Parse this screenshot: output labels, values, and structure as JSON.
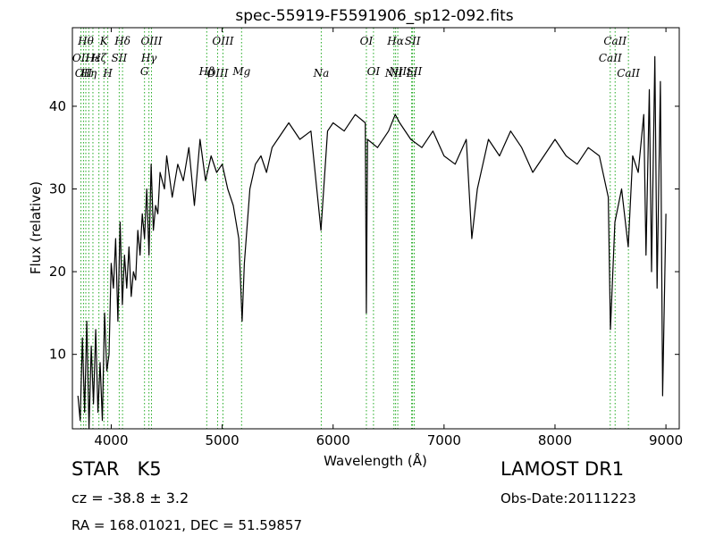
{
  "chart_data": {
    "type": "line",
    "title": "spec-55919-F5591906_sp12-092.fits",
    "xlabel": "Wavelength (Å)",
    "ylabel": "Flux (relative)",
    "xlim": [
      3650,
      9120
    ],
    "ylim": [
      1,
      49.5
    ],
    "xticks": [
      4000,
      5000,
      6000,
      7000,
      8000,
      9000
    ],
    "yticks": [
      10,
      20,
      30,
      40
    ],
    "grid": false,
    "line_color": "#000000",
    "marker_line_color": "#22aa22",
    "series": [
      {
        "x": [
          3700,
          3720,
          3740,
          3760,
          3780,
          3800,
          3820,
          3840,
          3860,
          3880,
          3900,
          3920,
          3940,
          3960,
          3980,
          4000,
          4020,
          4040,
          4060,
          4080,
          4100,
          4120,
          4140,
          4160,
          4180,
          4200,
          4220,
          4240,
          4260,
          4280,
          4300,
          4320,
          4340,
          4360,
          4380,
          4400,
          4420,
          4440,
          4460,
          4480,
          4500,
          4550,
          4600,
          4650,
          4700,
          4750,
          4800,
          4850,
          4900,
          4950,
          5000,
          5050,
          5100,
          5150,
          5180,
          5200,
          5250,
          5300,
          5350,
          5400,
          5450,
          5500,
          5600,
          5700,
          5800,
          5890,
          5950,
          6000,
          6100,
          6200,
          6290,
          6300,
          6310,
          6400,
          6500,
          6560,
          6600,
          6700,
          6800,
          6900,
          7000,
          7100,
          7200,
          7250,
          7300,
          7400,
          7500,
          7600,
          7700,
          7800,
          7900,
          8000,
          8100,
          8200,
          8300,
          8400,
          8480,
          8500,
          8540,
          8600,
          8660,
          8700,
          8750,
          8800,
          8820,
          8850,
          8870,
          8900,
          8920,
          8950,
          8970,
          9000
        ],
        "y": [
          5,
          2,
          12,
          3,
          14,
          1,
          11,
          4,
          13,
          3,
          9,
          2,
          15,
          8,
          10,
          21,
          18,
          24,
          14,
          26,
          16,
          22,
          18,
          23,
          17,
          20,
          19,
          25,
          22,
          27,
          24,
          30,
          22,
          33,
          25,
          28,
          27,
          32,
          31,
          30,
          34,
          29,
          33,
          31,
          35,
          28,
          36,
          31,
          34,
          32,
          33,
          30,
          28,
          24,
          14,
          21,
          30,
          33,
          34,
          32,
          35,
          36,
          38,
          36,
          37,
          25,
          37,
          38,
          37,
          39,
          38,
          15,
          36,
          35,
          37,
          39,
          38,
          36,
          35,
          37,
          34,
          33,
          36,
          24,
          30,
          36,
          34,
          37,
          35,
          32,
          34,
          36,
          34,
          33,
          35,
          34,
          29,
          13,
          26,
          30,
          23,
          34,
          32,
          39,
          22,
          42,
          20,
          46,
          18,
          43,
          5,
          27
        ]
      }
    ],
    "markers": [
      {
        "wl": 3727,
        "label": "OII",
        "row": 2
      },
      {
        "wl": 3750,
        "label": "OII",
        "row": 3
      },
      {
        "wl": 3771,
        "label": "Hθ",
        "row": 1
      },
      {
        "wl": 3798,
        "label": "Hη",
        "row": 3
      },
      {
        "wl": 3835,
        "label": "Hε",
        "row": 2
      },
      {
        "wl": 3889,
        "label": "Hζ",
        "row": 2
      },
      {
        "wl": 3934,
        "label": "K",
        "row": 1
      },
      {
        "wl": 3969,
        "label": "H",
        "row": 3
      },
      {
        "wl": 4072,
        "label": "SII",
        "row": 2
      },
      {
        "wl": 4102,
        "label": "Hδ",
        "row": 1
      },
      {
        "wl": 4300,
        "label": "G",
        "row": 4
      },
      {
        "wl": 4340,
        "label": "Hγ",
        "row": 2
      },
      {
        "wl": 4363,
        "label": "OIII",
        "row": 1
      },
      {
        "wl": 4861,
        "label": "Hβ",
        "row": 4
      },
      {
        "wl": 4959,
        "label": "OIII",
        "row": 3
      },
      {
        "wl": 5007,
        "label": "OIII",
        "row": 1
      },
      {
        "wl": 5175,
        "label": "Mg",
        "row": 4
      },
      {
        "wl": 5893,
        "label": "Na",
        "row": 3
      },
      {
        "wl": 6300,
        "label": "OI",
        "row": 1
      },
      {
        "wl": 6364,
        "label": "OI",
        "row": 4
      },
      {
        "wl": 6548,
        "label": "NII",
        "row": 3
      },
      {
        "wl": 6563,
        "label": "Hα",
        "row": 1
      },
      {
        "wl": 6583,
        "label": "NII",
        "row": 4
      },
      {
        "wl": 6708,
        "label": "Li",
        "row": 3
      },
      {
        "wl": 6716,
        "label": "SII",
        "row": 1
      },
      {
        "wl": 6731,
        "label": "SII",
        "row": 4
      },
      {
        "wl": 8498,
        "label": "CaII",
        "row": 2
      },
      {
        "wl": 8542,
        "label": "CaII",
        "row": 1
      },
      {
        "wl": 8662,
        "label": "CaII",
        "row": 3
      }
    ]
  },
  "info": {
    "class": "STAR",
    "subclass": "K5",
    "cz": "cz = -38.8 ± 3.2",
    "coords": "RA = 168.01021, DEC = 51.59857",
    "survey": "LAMOST DR1",
    "obs_date": "Obs-Date:20111223"
  }
}
